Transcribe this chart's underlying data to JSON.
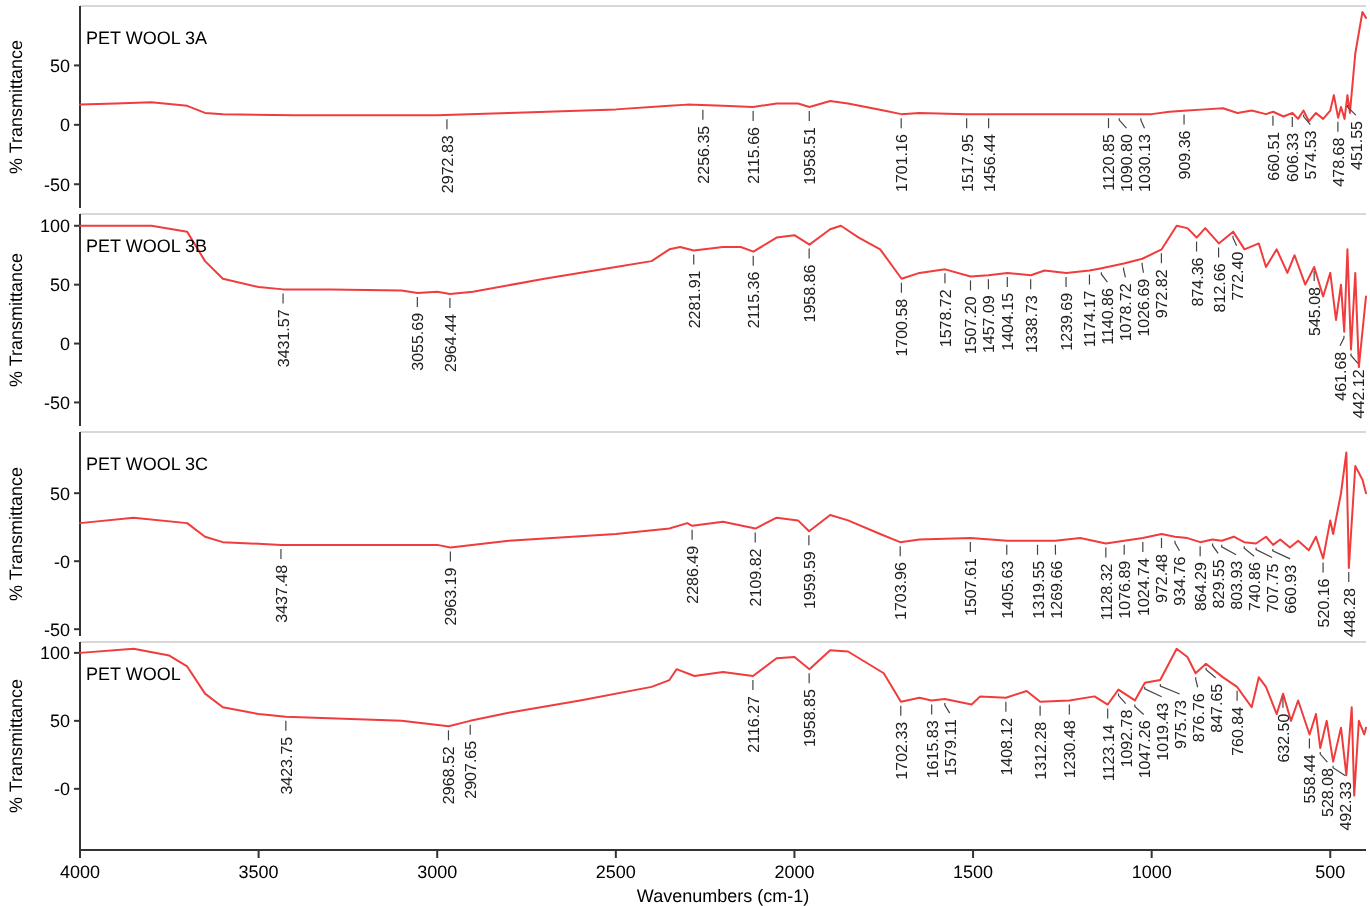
{
  "chart_data": [
    {
      "type": "line",
      "title": "PET WOOL 3A",
      "ylabel": "% Transmittance",
      "xlim": [
        4000,
        400
      ],
      "ylim": [
        -70,
        100
      ],
      "yticks": [
        50,
        0,
        -50
      ],
      "tick_labels": "y",
      "series": [
        {
          "color": "#f03c3c",
          "x": [
            4000,
            3900,
            3800,
            3700,
            3650,
            3600,
            3400,
            3000,
            2800,
            2500,
            2350,
            2300,
            2200,
            2116,
            2050,
            1990,
            1958,
            1900,
            1850,
            1750,
            1701,
            1650,
            1520,
            1450,
            1300,
            1100,
            1000,
            950,
            900,
            850,
            800,
            760,
            720,
            680,
            660,
            631,
            606,
            590,
            575,
            560,
            540,
            520,
            500,
            490,
            478,
            470,
            460,
            452,
            445,
            430,
            410,
            400
          ],
          "values": [
            17,
            18,
            19,
            16,
            10,
            9,
            8,
            8,
            10,
            13,
            16,
            17,
            16,
            15,
            18,
            18,
            15,
            20,
            18,
            12,
            9,
            10,
            9,
            9,
            9,
            9,
            9,
            11,
            12,
            13,
            14,
            10,
            12,
            9,
            11,
            7,
            10,
            5,
            12,
            3,
            10,
            5,
            12,
            25,
            6,
            15,
            5,
            25,
            10,
            60,
            95,
            90
          ]
        }
      ],
      "annotations": [
        {
          "text": "2972.83",
          "x": 2972.83,
          "y": 8
        },
        {
          "text": "2256.35",
          "x": 2256.35,
          "y": 16
        },
        {
          "text": "2115.66",
          "x": 2115.66,
          "y": 15
        },
        {
          "text": "1958.51",
          "x": 1958.51,
          "y": 15
        },
        {
          "text": "1701.16",
          "x": 1701.16,
          "y": 9
        },
        {
          "text": "1517.95",
          "x": 1517.95,
          "y": 9
        },
        {
          "text": "1456.44",
          "x": 1456.44,
          "y": 9
        },
        {
          "text": "1120.85",
          "x": 1120.85,
          "y": 9
        },
        {
          "text": "1090.80",
          "x": 1090.8,
          "y": 9
        },
        {
          "text": "1030.13",
          "x": 1030.13,
          "y": 9
        },
        {
          "text": "909.36",
          "x": 909.36,
          "y": 12
        },
        {
          "text": "660.51",
          "x": 660.51,
          "y": 11
        },
        {
          "text": "606.33",
          "x": 606.33,
          "y": 10
        },
        {
          "text": "574.53",
          "x": 574.53,
          "y": 12
        },
        {
          "text": "478.68",
          "x": 478.68,
          "y": 6
        },
        {
          "text": "451.55",
          "x": 451.55,
          "y": 20
        }
      ]
    },
    {
      "type": "line",
      "title": "PET WOOL 3B",
      "ylabel": "% Transmittance",
      "xlim": [
        4000,
        400
      ],
      "ylim": [
        -70,
        110
      ],
      "yticks": [
        100,
        50,
        0,
        -50
      ],
      "tick_labels": "y",
      "series": [
        {
          "color": "#f03c3c",
          "x": [
            4000,
            3800,
            3700,
            3650,
            3600,
            3500,
            3431,
            3300,
            3100,
            3055,
            3000,
            2964,
            2900,
            2700,
            2500,
            2400,
            2350,
            2320,
            2282,
            2200,
            2150,
            2115,
            2050,
            2000,
            1958,
            1900,
            1870,
            1820,
            1760,
            1700,
            1650,
            1578,
            1507,
            1457,
            1404,
            1338,
            1300,
            1239,
            1174,
            1140,
            1078,
            1026,
            972,
            930,
            900,
            874,
            850,
            812,
            772,
            740,
            700,
            680,
            650,
            620,
            600,
            570,
            545,
            520,
            500,
            484,
            470,
            461,
            452,
            442,
            430,
            420,
            400
          ],
          "values": [
            100,
            100,
            95,
            70,
            55,
            48,
            46,
            46,
            45,
            43,
            44,
            42,
            44,
            55,
            65,
            70,
            80,
            82,
            79,
            82,
            82,
            78,
            90,
            92,
            84,
            97,
            100,
            90,
            80,
            55,
            60,
            63,
            57,
            58,
            60,
            58,
            62,
            60,
            62,
            64,
            68,
            72,
            80,
            100,
            98,
            90,
            98,
            85,
            95,
            80,
            85,
            65,
            80,
            60,
            75,
            50,
            65,
            40,
            60,
            20,
            50,
            10,
            80,
            -5,
            60,
            -20,
            40
          ]
        }
      ],
      "annotations": [
        {
          "text": "3431.57",
          "x": 3431.57,
          "y": 46
        },
        {
          "text": "3055.69",
          "x": 3055.69,
          "y": 43
        },
        {
          "text": "2964.44",
          "x": 2964.44,
          "y": 42
        },
        {
          "text": "2281.91",
          "x": 2281.91,
          "y": 79
        },
        {
          "text": "2115.36",
          "x": 2115.36,
          "y": 78
        },
        {
          "text": "1958.86",
          "x": 1958.86,
          "y": 84
        },
        {
          "text": "1700.58",
          "x": 1700.58,
          "y": 55
        },
        {
          "text": "1578.72",
          "x": 1578.72,
          "y": 63
        },
        {
          "text": "1507.20",
          "x": 1507.2,
          "y": 57
        },
        {
          "text": "1457.09",
          "x": 1457.09,
          "y": 58
        },
        {
          "text": "1404.15",
          "x": 1404.15,
          "y": 60
        },
        {
          "text": "1338.73",
          "x": 1338.73,
          "y": 58
        },
        {
          "text": "1239.69",
          "x": 1239.69,
          "y": 60
        },
        {
          "text": "1174.17",
          "x": 1174.17,
          "y": 62
        },
        {
          "text": "1140.86",
          "x": 1140.86,
          "y": 64
        },
        {
          "text": "1078.72",
          "x": 1078.72,
          "y": 68
        },
        {
          "text": "1026.69",
          "x": 1026.69,
          "y": 72
        },
        {
          "text": "972.82",
          "x": 972.82,
          "y": 80
        },
        {
          "text": "874.36",
          "x": 874.36,
          "y": 90
        },
        {
          "text": "812.66",
          "x": 812.66,
          "y": 85
        },
        {
          "text": "772.40",
          "x": 772.4,
          "y": 95
        },
        {
          "text": "545.08",
          "x": 545.08,
          "y": 65
        },
        {
          "text": "461.68",
          "x": 461.68,
          "y": 10
        },
        {
          "text": "442.12",
          "x": 442.12,
          "y": -5
        }
      ]
    },
    {
      "type": "line",
      "title": "PET WOOL 3C",
      "ylabel": "% Transmittance",
      "xlim": [
        4000,
        400
      ],
      "ylim": [
        -55,
        95
      ],
      "yticks": [
        50,
        {
          "value": 0,
          "label": "-0"
        },
        -50
      ],
      "tick_labels": "y",
      "series": [
        {
          "color": "#f03c3c",
          "x": [
            4000,
            3850,
            3700,
            3650,
            3600,
            3437,
            3000,
            2963,
            2800,
            2500,
            2350,
            2300,
            2286,
            2200,
            2109,
            2050,
            1990,
            1959,
            1900,
            1850,
            1760,
            1704,
            1650,
            1507,
            1405,
            1319,
            1270,
            1200,
            1128,
            1077,
            1025,
            972,
            935,
            900,
            864,
            830,
            804,
            770,
            741,
            708,
            680,
            660,
            640,
            613,
            590,
            560,
            540,
            520,
            500,
            492,
            470,
            455,
            448,
            430,
            410,
            400
          ],
          "values": [
            28,
            32,
            28,
            18,
            14,
            12,
            12,
            10,
            15,
            20,
            24,
            28,
            26,
            29,
            24,
            32,
            30,
            22,
            34,
            30,
            20,
            14,
            16,
            17,
            15,
            15,
            15,
            17,
            13,
            15,
            17,
            20,
            18,
            17,
            14,
            16,
            15,
            18,
            14,
            13,
            18,
            12,
            16,
            10,
            15,
            8,
            18,
            2,
            30,
            20,
            50,
            80,
            -5,
            70,
            60,
            50
          ]
        }
      ],
      "annotations": [
        {
          "text": "3437.48",
          "x": 3437.48,
          "y": 12
        },
        {
          "text": "2963.19",
          "x": 2963.19,
          "y": 10
        },
        {
          "text": "2286.49",
          "x": 2286.49,
          "y": 26
        },
        {
          "text": "2109.82",
          "x": 2109.82,
          "y": 24
        },
        {
          "text": "1959.59",
          "x": 1959.59,
          "y": 22
        },
        {
          "text": "1703.96",
          "x": 1703.96,
          "y": 14
        },
        {
          "text": "1507.61",
          "x": 1507.61,
          "y": 17
        },
        {
          "text": "1405.63",
          "x": 1405.63,
          "y": 15
        },
        {
          "text": "1319.55",
          "x": 1319.55,
          "y": 15
        },
        {
          "text": "1269.66",
          "x": 1269.66,
          "y": 15
        },
        {
          "text": "1128.32",
          "x": 1128.32,
          "y": 13
        },
        {
          "text": "1076.89",
          "x": 1076.89,
          "y": 15
        },
        {
          "text": "1024.74",
          "x": 1024.74,
          "y": 17
        },
        {
          "text": "972.48",
          "x": 972.48,
          "y": 20
        },
        {
          "text": "934.76",
          "x": 934.76,
          "y": 18
        },
        {
          "text": "864.29",
          "x": 864.29,
          "y": 14
        },
        {
          "text": "829.55",
          "x": 829.55,
          "y": 16
        },
        {
          "text": "803.93",
          "x": 803.93,
          "y": 15
        },
        {
          "text": "740.86",
          "x": 740.86,
          "y": 14
        },
        {
          "text": "707.75",
          "x": 707.75,
          "y": 13
        },
        {
          "text": "660.93",
          "x": 660.93,
          "y": 12
        },
        {
          "text": "520.16",
          "x": 520.16,
          "y": 2
        },
        {
          "text": "448.28",
          "x": 448.28,
          "y": -5
        }
      ]
    },
    {
      "type": "line",
      "title": "PET WOOL",
      "ylabel": "% Transmittance",
      "xlabel": "Wavenumbers (cm-1)",
      "xlim": [
        4000,
        400
      ],
      "ylim": [
        -45,
        108
      ],
      "yticks": [
        100,
        50,
        {
          "value": 0,
          "label": "-0"
        }
      ],
      "xticks": [
        4000,
        3500,
        3000,
        2500,
        2000,
        1500,
        1000,
        500
      ],
      "series": [
        {
          "color": "#f03c3c",
          "x": [
            4000,
            3850,
            3750,
            3700,
            3650,
            3600,
            3500,
            3424,
            3100,
            2968,
            2908,
            2800,
            2600,
            2400,
            2350,
            2330,
            2280,
            2200,
            2116,
            2050,
            2000,
            1958,
            1900,
            1850,
            1750,
            1702,
            1650,
            1616,
            1579,
            1504,
            1480,
            1408,
            1350,
            1312,
            1230,
            1160,
            1123,
            1093,
            1047,
            1019,
            976,
            930,
            900,
            877,
            848,
            800,
            761,
            720,
            700,
            680,
            650,
            632,
            610,
            590,
            558,
            540,
            528,
            510,
            492,
            470,
            455,
            440,
            433,
            420,
            405,
            400
          ],
          "values": [
            100,
            103,
            98,
            90,
            70,
            60,
            55,
            53,
            50,
            46,
            50,
            56,
            65,
            75,
            80,
            88,
            83,
            86,
            83,
            96,
            97,
            88,
            102,
            101,
            85,
            64,
            67,
            65,
            66,
            62,
            68,
            67,
            72,
            64,
            65,
            68,
            62,
            73,
            65,
            78,
            80,
            103,
            97,
            85,
            92,
            82,
            75,
            60,
            82,
            75,
            55,
            70,
            50,
            65,
            40,
            55,
            30,
            50,
            20,
            45,
            10,
            60,
            -5,
            50,
            40,
            45
          ]
        }
      ],
      "annotations": [
        {
          "text": "3423.75",
          "x": 3423.75,
          "y": 53
        },
        {
          "text": "2968.52",
          "x": 2968.52,
          "y": 46
        },
        {
          "text": "2907.65",
          "x": 2907.65,
          "y": 50
        },
        {
          "text": "2116.27",
          "x": 2116.27,
          "y": 83
        },
        {
          "text": "1958.85",
          "x": 1958.85,
          "y": 88
        },
        {
          "text": "1702.33",
          "x": 1702.33,
          "y": 64
        },
        {
          "text": "1615.83",
          "x": 1615.83,
          "y": 65
        },
        {
          "text": "1579.11",
          "x": 1579.11,
          "y": 66
        },
        {
          "text": "1408.12",
          "x": 1408.12,
          "y": 67
        },
        {
          "text": "1312.28",
          "x": 1312.28,
          "y": 64
        },
        {
          "text": "1230.48",
          "x": 1230.48,
          "y": 65
        },
        {
          "text": "1123.14",
          "x": 1123.14,
          "y": 62
        },
        {
          "text": "1092.78",
          "x": 1092.78,
          "y": 73
        },
        {
          "text": "1047.26",
          "x": 1047.26,
          "y": 65
        },
        {
          "text": "1019.43",
          "x": 1019.43,
          "y": 78
        },
        {
          "text": "975.73",
          "x": 975.73,
          "y": 80
        },
        {
          "text": "876.76",
          "x": 876.76,
          "y": 85
        },
        {
          "text": "847.65",
          "x": 847.65,
          "y": 92
        },
        {
          "text": "760.84",
          "x": 760.84,
          "y": 75
        },
        {
          "text": "632.50",
          "x": 632.5,
          "y": 70
        },
        {
          "text": "558.44",
          "x": 558.44,
          "y": 40
        },
        {
          "text": "528.08",
          "x": 528.08,
          "y": 30
        },
        {
          "text": "492.33",
          "x": 492.33,
          "y": 20
        }
      ]
    }
  ]
}
